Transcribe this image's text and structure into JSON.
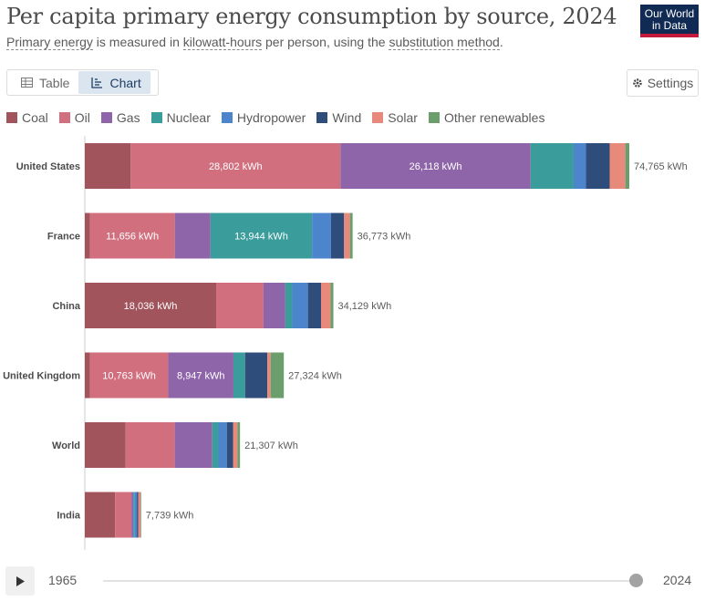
{
  "header": {
    "title": "Per capita primary energy consumption by source, 2024",
    "subtitle_parts": [
      "Primary energy",
      " is measured in ",
      "kilowatt-hours",
      " per person, using the ",
      "substitution method",
      "."
    ],
    "logo_line1": "Our World",
    "logo_line2": "in Data"
  },
  "tabs": [
    {
      "label": "Table",
      "icon": "table-icon",
      "active": false
    },
    {
      "label": "Chart",
      "icon": "chart-icon",
      "active": true
    }
  ],
  "settings_label": "Settings",
  "timeline": {
    "start_year": "1965",
    "end_year": "2024",
    "position": 1.0
  },
  "chart_data": {
    "type": "bar",
    "orientation": "horizontal",
    "stacked": true,
    "unit": "kWh",
    "xlim": [
      0,
      74765
    ],
    "categories": [
      "United States",
      "France",
      "China",
      "United Kingdom",
      "World",
      "India"
    ],
    "series": [
      {
        "name": "Coal",
        "color": "#a2545d",
        "values": [
          6300,
          700,
          18036,
          700,
          5600,
          4150
        ]
      },
      {
        "name": "Oil",
        "color": "#d16f7f",
        "values": [
          28802,
          11656,
          6500,
          10763,
          6750,
          2250
        ]
      },
      {
        "name": "Gas",
        "color": "#8f65aa",
        "values": [
          26118,
          4900,
          3000,
          8947,
          5150,
          250
        ]
      },
      {
        "name": "Nuclear",
        "color": "#3b9c9c",
        "values": [
          5900,
          13944,
          950,
          1600,
          850,
          150
        ]
      },
      {
        "name": "Hydropower",
        "color": "#4c85cc",
        "values": [
          1700,
          2600,
          2150,
          0,
          1150,
          350
        ]
      },
      {
        "name": "Wind",
        "color": "#2f4d7b",
        "values": [
          3250,
          1800,
          1800,
          3050,
          850,
          200
        ]
      },
      {
        "name": "Solar",
        "color": "#e7897b",
        "values": [
          2150,
          800,
          1300,
          450,
          600,
          300
        ]
      },
      {
        "name": "Other renewables",
        "color": "#6b9e6c",
        "values": [
          545,
          373,
          393,
          1814,
          357,
          89
        ]
      }
    ],
    "totals": [
      74765,
      36773,
      34129,
      27324,
      21307,
      7739
    ],
    "total_labels": [
      "74,765 kWh",
      "36,773 kWh",
      "34,129 kWh",
      "27,324 kWh",
      "21,307 kWh",
      "7,739 kWh"
    ],
    "segment_labels": [
      {
        "category": 0,
        "series": 1,
        "text": "28,802 kWh"
      },
      {
        "category": 0,
        "series": 2,
        "text": "26,118 kWh"
      },
      {
        "category": 1,
        "series": 1,
        "text": "11,656 kWh"
      },
      {
        "category": 1,
        "series": 3,
        "text": "13,944 kWh"
      },
      {
        "category": 2,
        "series": 0,
        "text": "18,036 kWh"
      },
      {
        "category": 3,
        "series": 1,
        "text": "10,763 kWh"
      },
      {
        "category": 3,
        "series": 2,
        "text": "8,947 kWh"
      }
    ]
  }
}
